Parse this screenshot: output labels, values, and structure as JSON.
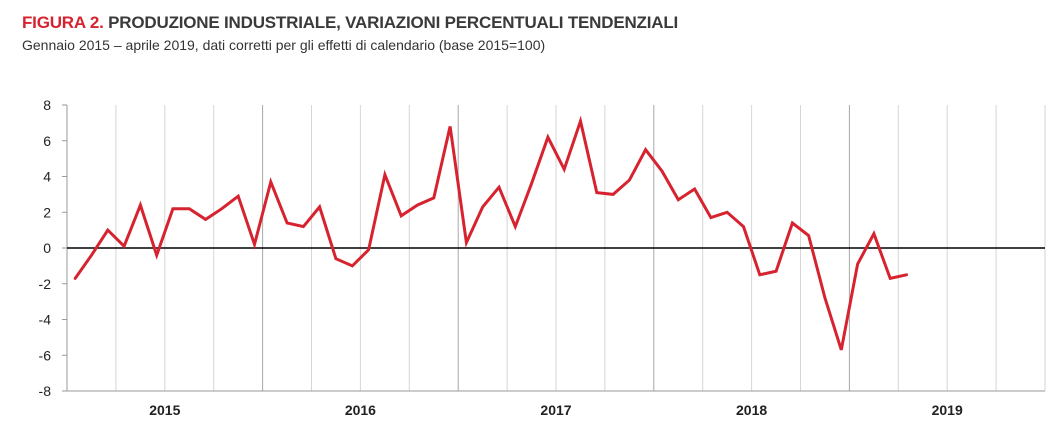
{
  "header": {
    "title_prefix": "FIGURA 2.",
    "title_main": "PRODUZIONE INDUSTRIALE, VARIAZIONI PERCENTUALI TENDENZIALI",
    "subtitle": "Gennaio 2015 – aprile 2019, dati corretti per gli effetti di calendario (base 2015=100)"
  },
  "chart_data": {
    "type": "line",
    "title": "FIGURA 2. PRODUZIONE INDUSTRIALE, VARIAZIONI PERCENTUALI TENDENZIALI",
    "subtitle": "Gennaio 2015 – aprile 2019, dati corretti per gli effetti di calendario (base 2015=100)",
    "xlabel": "",
    "ylabel": "",
    "ylim": [
      -8,
      8
    ],
    "yticks": [
      8,
      6,
      4,
      2,
      0,
      -2,
      -4,
      -6,
      -8
    ],
    "year_labels": [
      "2015",
      "2016",
      "2017",
      "2018",
      "2019"
    ],
    "months_per_year": 12,
    "total_month_slots": 60,
    "grid": "vertical quarterly, stronger at year boundaries",
    "zero_line": true,
    "series": [
      {
        "color": "#d6232f",
        "values": [
          -1.7,
          -0.4,
          1.0,
          0.1,
          2.4,
          -0.4,
          2.2,
          2.2,
          1.6,
          2.2,
          2.9,
          0.2,
          3.7,
          1.4,
          1.2,
          2.3,
          -0.6,
          -1.0,
          -0.1,
          4.1,
          1.8,
          2.4,
          2.8,
          6.8,
          0.3,
          2.3,
          3.4,
          1.2,
          3.6,
          6.2,
          4.4,
          7.1,
          3.1,
          3.0,
          3.8,
          5.5,
          4.3,
          2.7,
          3.3,
          1.7,
          2.0,
          1.2,
          -1.5,
          -1.3,
          1.4,
          0.7,
          -2.8,
          -5.7,
          -0.9,
          0.8,
          -1.7,
          -1.5
        ]
      }
    ]
  }
}
